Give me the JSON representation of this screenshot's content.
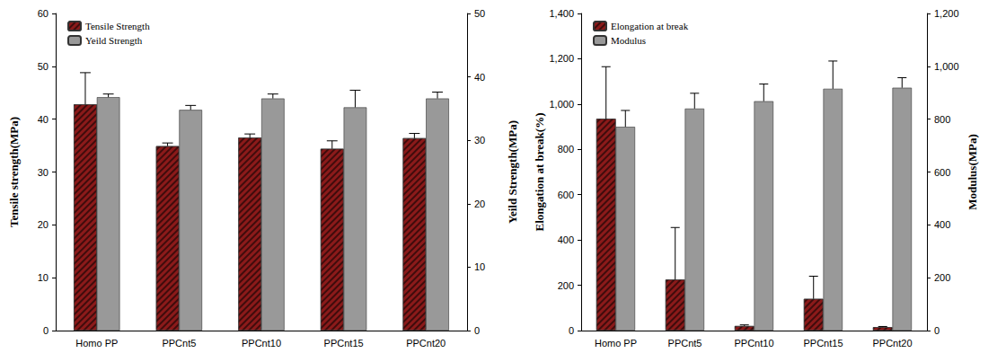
{
  "chart_data": [
    {
      "type": "bar",
      "categories": [
        "Homo PP",
        "PPCnt5",
        "PPCnt10",
        "PPCnt15",
        "PPCnt20"
      ],
      "y_label": "Tensile strength(MPa)",
      "y2_label": "Yeild Strength(MPa)",
      "ylim": [
        0,
        60
      ],
      "yticks": [
        0,
        10,
        20,
        30,
        40,
        50,
        60
      ],
      "y2lim": [
        0,
        50
      ],
      "y2ticks": [
        0,
        10,
        20,
        30,
        40,
        50
      ],
      "grid": false,
      "legend": "upper left",
      "series": [
        {
          "name": "Tensile Strength",
          "color": "#8b1a1a",
          "values": [
            42.8,
            34.9,
            36.5,
            34.4,
            36.4
          ],
          "errors": [
            6.0,
            0.6,
            0.7,
            1.5,
            0.9
          ]
        },
        {
          "name": "Yeild Strength",
          "color": "#999999",
          "axis": "y2",
          "values": [
            36.8,
            34.8,
            36.6,
            35.2,
            36.6
          ],
          "errors": [
            0.5,
            0.7,
            0.7,
            2.7,
            1.0
          ]
        }
      ]
    },
    {
      "type": "bar",
      "categories": [
        "Homo PP",
        "PPCnt5",
        "PPCnt10",
        "PPCnt15",
        "PPCnt20"
      ],
      "y_label": "Elongation at break(%)",
      "y2_label": "Modulus(MPa)",
      "ylim": [
        0,
        1400
      ],
      "yticks": [
        0,
        200,
        400,
        600,
        800,
        1000,
        1200,
        1400
      ],
      "y2lim": [
        0,
        1200
      ],
      "y2ticks": [
        0,
        200,
        400,
        600,
        800,
        1000,
        1200
      ],
      "grid": false,
      "legend": "upper left",
      "series": [
        {
          "name": "Elongation at break",
          "color": "#8b1a1a",
          "values": [
            935,
            225,
            20,
            140,
            15
          ],
          "errors": [
            230,
            230,
            5,
            100,
            3
          ]
        },
        {
          "name": "Modulus",
          "color": "#999999",
          "axis": "y2",
          "values": [
            771,
            840,
            868,
            915,
            919
          ],
          "errors": [
            62,
            58,
            65,
            105,
            38
          ]
        }
      ]
    }
  ]
}
